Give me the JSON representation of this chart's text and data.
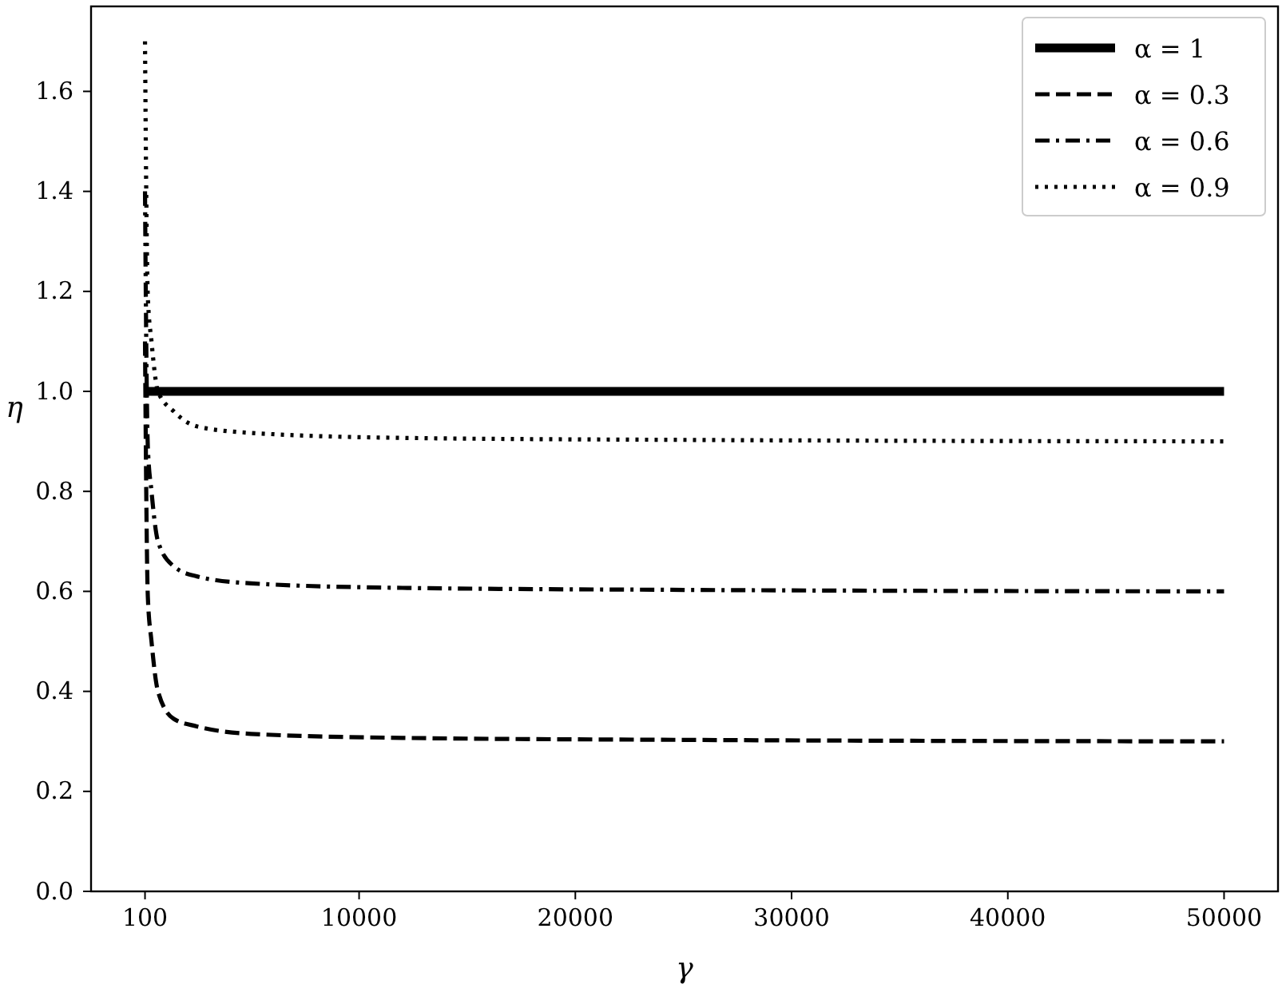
{
  "chart_data": {
    "type": "line",
    "xlabel": "γ",
    "ylabel": "η",
    "x": [
      100,
      150,
      230,
      400,
      700,
      1430,
      2500,
      5000,
      12000,
      25000,
      50000
    ],
    "series": [
      {
        "name": "α = 1",
        "color": "#000000",
        "line_style": "solid",
        "values": [
          1,
          1,
          1,
          1,
          1,
          1,
          1,
          1,
          1,
          1,
          1
        ]
      },
      {
        "name": "α = 0.3",
        "color": "#000000",
        "line_style": "dashed",
        "values": [
          1.1,
          0.83,
          0.59,
          0.5,
          0.4,
          0.345,
          0.33,
          0.315,
          0.307,
          0.303,
          0.3
        ]
      },
      {
        "name": "α = 0.6",
        "color": "#000000",
        "line_style": "dashdot",
        "values": [
          1.4,
          1.13,
          0.89,
          0.8,
          0.7,
          0.65,
          0.63,
          0.616,
          0.607,
          0.603,
          0.6
        ]
      },
      {
        "name": "α = 0.9",
        "color": "#000000",
        "line_style": "dotted",
        "values": [
          1.7,
          1.43,
          1.19,
          1.1,
          1.0,
          0.96,
          0.93,
          0.917,
          0.907,
          0.903,
          0.9
        ]
      }
    ],
    "xlim": [
      -2395,
      52495
    ],
    "xticks": [
      100,
      10000,
      20000,
      30000,
      40000,
      50000
    ],
    "ylim": [
      0,
      1.77
    ],
    "yticks": [
      {
        "value": 0,
        "label": "0.0"
      },
      {
        "value": 0.2,
        "label": "0.2"
      },
      {
        "value": 0.4,
        "label": "0.4"
      },
      {
        "value": 0.6,
        "label": "0.6"
      },
      {
        "value": 0.8,
        "label": "0.8"
      },
      {
        "value": 1,
        "label": "1.0"
      },
      {
        "value": 1.2,
        "label": "1.2"
      },
      {
        "value": 1.4,
        "label": "1.4"
      },
      {
        "value": 1.6,
        "label": "1.6"
      }
    ],
    "grid": false,
    "legend": "top right",
    "marker": "none"
  }
}
